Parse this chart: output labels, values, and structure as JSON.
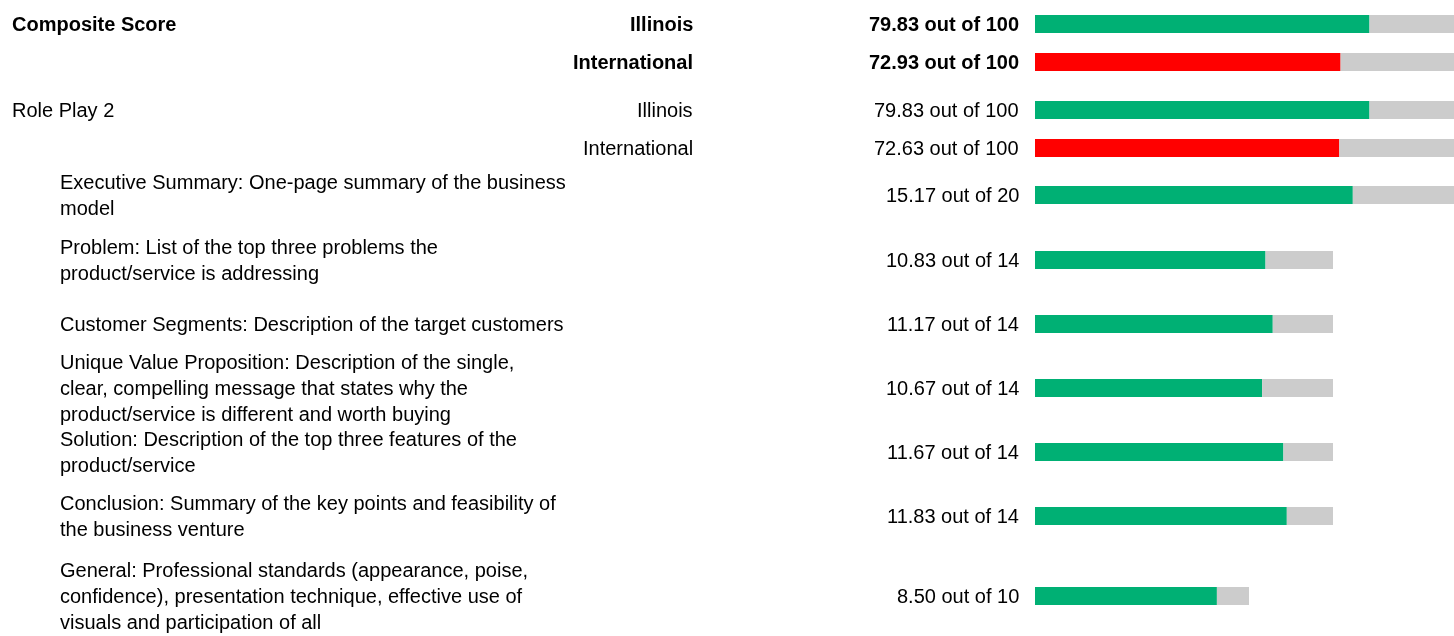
{
  "chart_data": [
    {
      "type": "bar",
      "orientation": "horizontal",
      "stacked": true,
      "ylabel": "Composite Score",
      "categories": [
        "Illinois",
        "International"
      ],
      "xlim": [
        0,
        100
      ],
      "tick_labels": "y",
      "series": [
        {
          "colors": [
            "#00b074",
            "#ff0000"
          ],
          "values": [
            79.83,
            72.93
          ],
          "value_labels": [
            "79.83 out of 100",
            "72.93 out of 100"
          ]
        },
        {
          "color": "#cccccc",
          "values": [
            20.17,
            27.07
          ]
        }
      ]
    },
    {
      "type": "bar",
      "orientation": "horizontal",
      "stacked": true,
      "ylabel": "Role Play 2",
      "categories": [
        "Illinois",
        "International"
      ],
      "xlim": [
        0,
        100
      ],
      "tick_labels": "y",
      "series": [
        {
          "colors": [
            "#00b074",
            "#ff0000"
          ],
          "values": [
            79.83,
            72.63
          ],
          "value_labels": [
            "79.83 out of 100",
            "72.63 out of 100"
          ]
        },
        {
          "color": "#cccccc",
          "values": [
            20.17,
            27.37
          ]
        }
      ]
    },
    {
      "type": "bar",
      "orientation": "horizontal",
      "stacked": true,
      "categories": [
        "Executive Summary: One-page summary of the business model"
      ],
      "xlim": [
        0,
        20
      ],
      "tick_labels": "y",
      "series": [
        {
          "color": "#00b074",
          "values": [
            15.17
          ],
          "value_labels": [
            "15.17 out of 20"
          ]
        },
        {
          "color": "#cccccc",
          "values": [
            4.83
          ]
        }
      ]
    },
    {
      "type": "bar",
      "orientation": "horizontal",
      "stacked": true,
      "categories": [
        "Problem: List of the top three problems the product/service is addressing",
        "Customer Segments: Description of the target customers",
        "Unique Value Proposition: Description of the single, clear, compelling message that states why the product/service is different and worth buying",
        "Solution: Description of the top three features of the product/service",
        "Conclusion: Summary of the key points and feasibility of the business venture"
      ],
      "xlim": [
        0,
        14
      ],
      "tick_labels": "y",
      "series": [
        {
          "color": "#00b074",
          "values": [
            10.83,
            11.17,
            10.67,
            11.67,
            11.83
          ],
          "value_labels": [
            "10.83 out of 14",
            "11.17 out of 14",
            "10.67 out of 14",
            "11.67 out of 14",
            "11.83 out of 14"
          ]
        },
        {
          "color": "#cccccc",
          "values": [
            3.17,
            2.83,
            3.33,
            2.33,
            2.17
          ]
        }
      ]
    },
    {
      "type": "bar",
      "orientation": "horizontal",
      "stacked": true,
      "categories": [
        "General: Professional standards (appearance, poise, confidence), presentation technique, effective use of visuals and participation of all"
      ],
      "xlim": [
        0,
        10
      ],
      "tick_labels": "y",
      "series": [
        {
          "color": "#00b074",
          "values": [
            8.5
          ],
          "value_labels": [
            "8.50 out of 10"
          ]
        },
        {
          "color": "#cccccc",
          "values": [
            1.5
          ]
        }
      ]
    }
  ]
}
